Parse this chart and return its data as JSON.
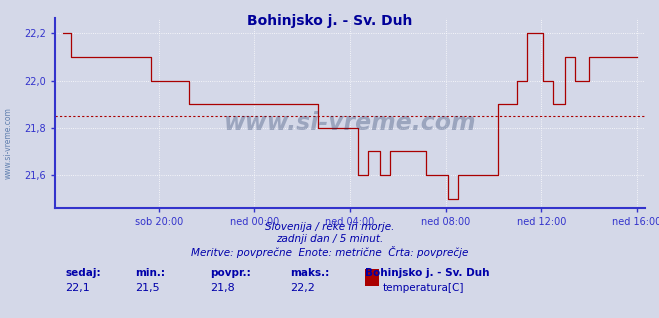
{
  "title": "Bohinjsko j. - Sv. Duh",
  "title_color": "#000099",
  "bg_color": "#d4d8e8",
  "plot_bg_color": "#d4d8e8",
  "line_color": "#aa0000",
  "avg_line_color": "#aa0000",
  "avg_line_value": 21.85,
  "ylim": [
    21.46,
    22.265
  ],
  "yticks": [
    21.6,
    21.8,
    22.0,
    22.2
  ],
  "ytick_labels": [
    "21,6",
    "21,8",
    "22,0",
    "22,2"
  ],
  "xlabel_color": "#0000aa",
  "ylabel_color": "#0000aa",
  "grid_color": "#ffffff",
  "grid_alpha": 1.0,
  "axis_color": "#3333cc",
  "watermark": "www.si-vreme.com",
  "watermark_color": "#1a3060",
  "watermark_alpha": 0.3,
  "footer_lines": [
    "Slovenija / reke in morje.",
    "zadnji dan / 5 minut.",
    "Meritve: povprečne  Enote: metrične  Črta: povprečje"
  ],
  "footer_color": "#0000aa",
  "legend_title": "Bohinjsko j. - Sv. Duh",
  "legend_label": "temperatura[C]",
  "legend_color": "#aa0000",
  "stats_labels": [
    "sedaj:",
    "min.:",
    "povpr.:",
    "maks.:"
  ],
  "stats_values": [
    "22,1",
    "21,5",
    "21,8",
    "22,2"
  ],
  "stats_color": "#0000aa",
  "xtick_labels": [
    "sob 20:00",
    "ned 00:00",
    "ned 04:00",
    "ned 08:00",
    "ned 12:00",
    "ned 16:00"
  ],
  "n_points": 289,
  "xtick_positions": [
    48,
    96,
    144,
    192,
    240,
    288
  ]
}
